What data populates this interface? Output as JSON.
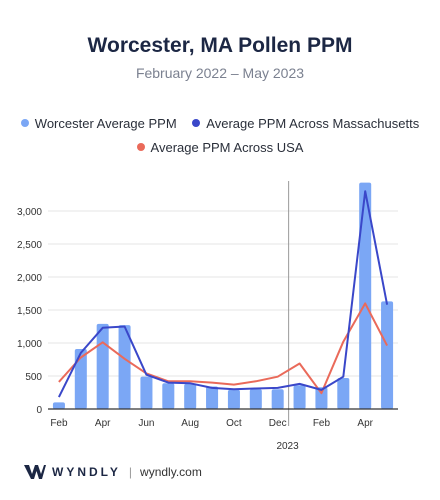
{
  "chart_data": {
    "type": "bar",
    "title": "Worcester, MA Pollen PPM",
    "subtitle": "February 2022 – May 2023",
    "ylim": [
      0,
      3500
    ],
    "y_ticks": [
      "0",
      "500",
      "1,000",
      "1,500",
      "2,000",
      "2,500",
      "3,000"
    ],
    "y_tick_values": [
      0,
      500,
      1000,
      1500,
      2000,
      2500,
      3000
    ],
    "x_tick_labels": [
      {
        "label": "Feb",
        "index": 0
      },
      {
        "label": "Apr",
        "index": 2
      },
      {
        "label": "Jun",
        "index": 4
      },
      {
        "label": "Aug",
        "index": 6
      },
      {
        "label": "Oct",
        "index": 8
      },
      {
        "label": "Dec",
        "index": 10
      },
      {
        "label": "Feb",
        "index": 12
      },
      {
        "label": "Apr",
        "index": 14
      }
    ],
    "year_label": "2023",
    "year_divider_index": 10.5,
    "categories": [
      "Feb 2022",
      "Mar 2022",
      "Apr 2022",
      "May 2022",
      "Jun 2022",
      "Jul 2022",
      "Aug 2022",
      "Sep 2022",
      "Oct 2022",
      "Nov 2022",
      "Dec 2022",
      "Jan 2023",
      "Feb 2023",
      "Mar 2023",
      "Apr 2023",
      "May 2023"
    ],
    "series": [
      {
        "name": "Worcester Average PPM",
        "kind": "bar",
        "color": "#7ba7f5",
        "values": [
          100,
          910,
          1290,
          1270,
          490,
          390,
          380,
          340,
          290,
          300,
          300,
          360,
          330,
          470,
          3430,
          1630
        ]
      },
      {
        "name": "Average PPM Across Massachusetts",
        "kind": "line",
        "color": "#3a47c9",
        "values": [
          180,
          850,
          1230,
          1250,
          520,
          400,
          390,
          320,
          300,
          310,
          320,
          380,
          290,
          490,
          3300,
          1580
        ]
      },
      {
        "name": "Average PPM Across USA",
        "kind": "line",
        "color": "#ea6a5a",
        "values": [
          410,
          780,
          1010,
          760,
          540,
          420,
          420,
          400,
          370,
          420,
          490,
          690,
          240,
          1020,
          1600,
          960
        ]
      }
    ],
    "grid": true
  },
  "footer": {
    "brand": "WYNDLY",
    "url": "wyndly.com"
  },
  "colors": {
    "title": "#1c2744",
    "grid": "#e6e6e6",
    "axis": "#333333"
  }
}
